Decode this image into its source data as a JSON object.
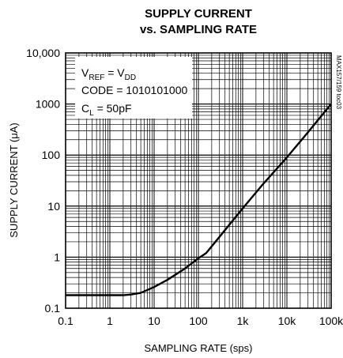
{
  "chart_data": {
    "type": "line",
    "title_line1": "SUPPLY CURRENT",
    "title_line2": "vs. SAMPLING RATE",
    "xlabel": "SAMPLING RATE (sps)",
    "ylabel": "SUPPLY CURRENT (μA)",
    "x_scale": "log",
    "y_scale": "log",
    "xlim": [
      0.1,
      100000
    ],
    "ylim": [
      0.1,
      10000
    ],
    "grid": true,
    "x_ticks": [
      0.1,
      1,
      10,
      100,
      1000,
      10000,
      100000
    ],
    "x_tick_labels": [
      "0.1",
      "1",
      "10",
      "100",
      "1k",
      "10k",
      "100k"
    ],
    "y_ticks": [
      0.1,
      1,
      10,
      100,
      1000,
      10000
    ],
    "y_tick_labels": [
      "0.1",
      "1",
      "10",
      "100",
      "1000",
      "10,000"
    ],
    "legend": {
      "placement": "top-left",
      "lines": [
        {
          "base": "V",
          "sub": "REF",
          "mid": " = V",
          "sub2": "DD",
          "tail": ""
        },
        {
          "base": "CODE = 1010101000",
          "sub": "",
          "mid": "",
          "sub2": "",
          "tail": ""
        },
        {
          "base": "C",
          "sub": "L",
          "mid": " = 50pF",
          "sub2": "",
          "tail": ""
        }
      ]
    },
    "corner_note": "MAX157/159 toc03",
    "series": [
      {
        "x": [
          0.1,
          0.3,
          1,
          2,
          3,
          5,
          10,
          20,
          50,
          100,
          150,
          300,
          1000,
          3000,
          10000,
          30000,
          100000
        ],
        "y": [
          0.18,
          0.18,
          0.18,
          0.18,
          0.185,
          0.2,
          0.26,
          0.36,
          0.6,
          0.95,
          1.2,
          2.5,
          9,
          28,
          90,
          280,
          1000
        ]
      }
    ]
  }
}
